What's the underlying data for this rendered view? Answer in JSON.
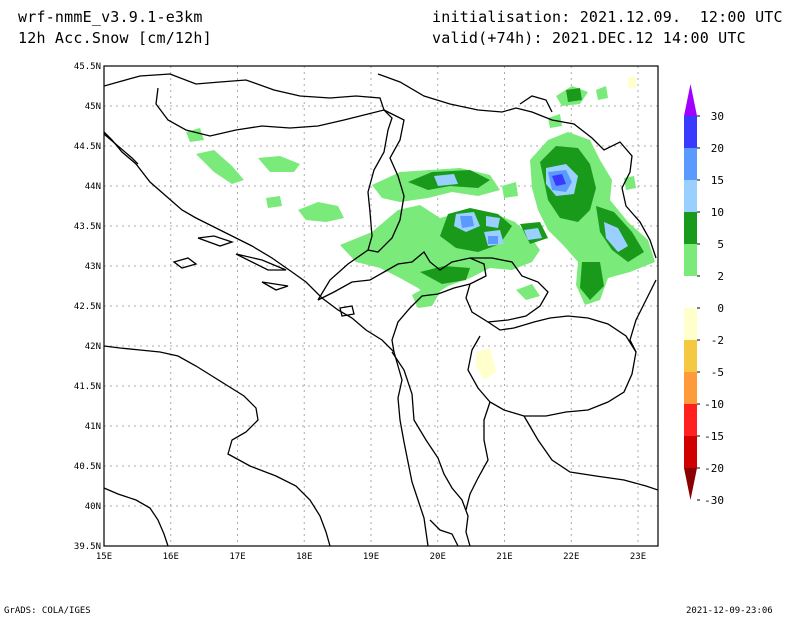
{
  "header": {
    "model": "wrf-nmmE_v3.9.1-e3km",
    "field": "12h Acc.Snow [cm/12h]",
    "init": "initialisation: 2021.12.09.  12:00 UTC",
    "valid": "valid(+74h): 2021.DEC.12 14:00 UTC"
  },
  "footer": {
    "credit": "GrADS: COLA/IGES",
    "timestamp": "2021-12-09-23:06"
  },
  "axes": {
    "lat_labels": [
      "45.5N",
      "45N",
      "44.5N",
      "44N",
      "43.5N",
      "43N",
      "42.5N",
      "42N",
      "41.5N",
      "41N",
      "40.5N",
      "40N",
      "39.5N"
    ],
    "lon_labels": [
      "15E",
      "16E",
      "17E",
      "18E",
      "19E",
      "20E",
      "21E",
      "22E",
      "23E"
    ]
  },
  "colorbar": {
    "labels": [
      "30",
      "20",
      "15",
      "10",
      "5",
      "2",
      "0",
      "-2",
      "-5",
      "-10",
      "-15",
      "-20",
      "-30"
    ],
    "colors": [
      "#a000ff",
      "#3a3aff",
      "#5a9aff",
      "#9ad0ff",
      "#1a9a1a",
      "#7aea7a",
      "#ffffff",
      "#ffffcc",
      "#f5c842",
      "#ff9a3a",
      "#ff2020",
      "#d00000",
      "#8a0000"
    ]
  },
  "map_colors": {
    "light_green": "#7aea7a",
    "dark_green": "#1a9a1a",
    "light_blue": "#9ad0ff",
    "mid_blue": "#5a9aff",
    "deep_blue": "#3a3aff",
    "pale_yellow": "#ffffcc",
    "grid": "#aaaaaa"
  }
}
